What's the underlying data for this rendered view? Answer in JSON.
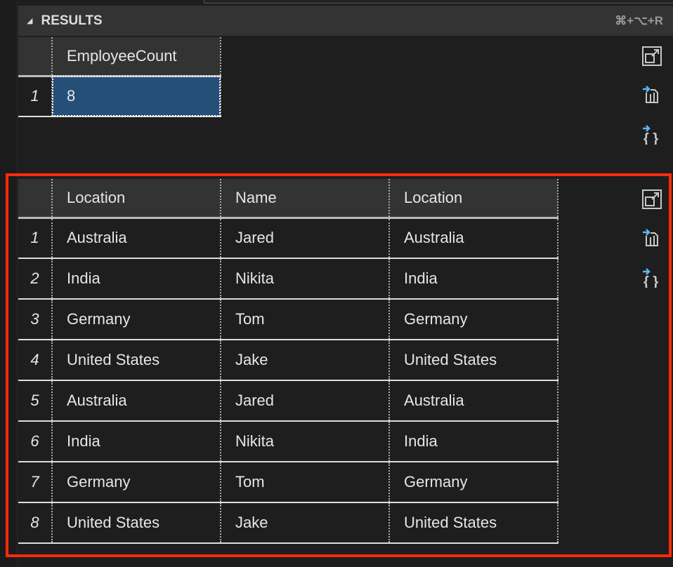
{
  "header": {
    "title": "RESULTS",
    "shortcut": "⌘+⌥+R"
  },
  "grid1": {
    "columns": [
      "EmployeeCount"
    ],
    "rows": [
      {
        "num": "1",
        "cells": [
          "8"
        ]
      }
    ]
  },
  "grid2": {
    "columns": [
      "Location",
      "Name",
      "Location"
    ],
    "rows": [
      {
        "num": "1",
        "cells": [
          "Australia",
          "Jared",
          "Australia"
        ]
      },
      {
        "num": "2",
        "cells": [
          "India",
          "Nikita",
          "India"
        ]
      },
      {
        "num": "3",
        "cells": [
          "Germany",
          "Tom",
          "Germany"
        ]
      },
      {
        "num": "4",
        "cells": [
          "United States",
          "Jake",
          "United States"
        ]
      },
      {
        "num": "5",
        "cells": [
          "Australia",
          "Jared",
          "Australia"
        ]
      },
      {
        "num": "6",
        "cells": [
          "India",
          "Nikita",
          "India"
        ]
      },
      {
        "num": "7",
        "cells": [
          "Germany",
          "Tom",
          "Germany"
        ]
      },
      {
        "num": "8",
        "cells": [
          "United States",
          "Jake",
          "United States"
        ]
      }
    ]
  },
  "icons": [
    "maximize-icon",
    "save-as-csv-icon",
    "save-as-json-icon"
  ],
  "colors": {
    "selection": "#264f78",
    "highlight_border": "#ff2a0a",
    "icon_arrow": "#5eb4f4"
  }
}
